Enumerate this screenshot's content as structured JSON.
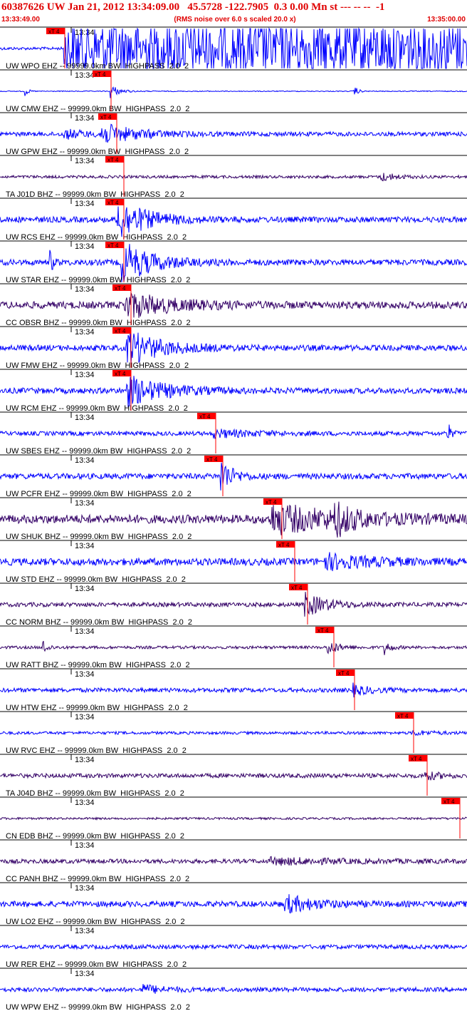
{
  "header": {
    "title": "60387626 UW Jan 21, 2012 13:34:09.00   45.5728 -122.7905  0.3 0.00 Mn st --- -- --  -1",
    "start_time": "13:33:49.00",
    "note": "(RMS noise over 6.0 s scaled 20.0 x)",
    "end_time": "13:35:00.00"
  },
  "traces": [
    {
      "label": "UW WPO EHZ -- 99999.0km BW  HIGHPASS  2.0  2",
      "time": "13:34",
      "pick": "xT 4"
    },
    {
      "label": "UW CMW EHZ -- 99999.0km BW  HIGHPASS  2.0  2",
      "time": "13:34",
      "pick": "xT 4"
    },
    {
      "label": "UW GPW EHZ -- 99999.0km BW  HIGHPASS  2.0  2",
      "time": "13:34",
      "pick": "xT 4"
    },
    {
      "label": "TA J01D BHZ -- 99999.0km BW  HIGHPASS  2.0  2",
      "time": "13:34",
      "pick": "xT 4"
    },
    {
      "label": "UW RCS EHZ -- 99999.0km BW  HIGHPASS  2.0  2",
      "time": "13:34",
      "pick": "xT 4"
    },
    {
      "label": "UW STAR EHZ -- 99999.0km BW  HIGHPASS  2.0  2",
      "time": "13:34",
      "pick": "xT 4"
    },
    {
      "label": "CC OBSR BHZ -- 99999.0km BW  HIGHPASS  2.0  2",
      "time": "13:34",
      "pick": "xT 4"
    },
    {
      "label": "UW FMW EHZ -- 99999.0km BW  HIGHPASS  2.0  2",
      "time": "13:34",
      "pick": "xT 4"
    },
    {
      "label": "UW RCM EHZ -- 99999.0km BW  HIGHPASS  2.0  2",
      "time": "13:34",
      "pick": "xT 4"
    },
    {
      "label": "UW SBES EHZ -- 99999.0km BW  HIGHPASS  2.0  2",
      "time": "13:34",
      "pick": "xT 4"
    },
    {
      "label": "UW PCFR EHZ -- 99999.0km BW  HIGHPASS  2.0  2",
      "time": "13:34",
      "pick": "xT 4"
    },
    {
      "label": "UW SHUK BHZ -- 99999.0km BW  HIGHPASS  2.0  2",
      "time": "13:34",
      "pick": "xT 4"
    },
    {
      "label": "UW STD EHZ -- 99999.0km BW  HIGHPASS  2.0  2",
      "time": "13:34",
      "pick": "xT 4"
    },
    {
      "label": "CC NORM BHZ -- 99999.0km BW  HIGHPASS  2.0  2",
      "time": "13:34",
      "pick": "xT 4"
    },
    {
      "label": "UW RATT BHZ -- 99999.0km BW  HIGHPASS  2.0  2",
      "time": "13:34",
      "pick": "xT 4"
    },
    {
      "label": "UW HTW EHZ -- 99999.0km BW  HIGHPASS  2.0  2",
      "time": "13:34",
      "pick": "xT 4"
    },
    {
      "label": "UW RVC EHZ -- 99999.0km BW  HIGHPASS  2.0  2",
      "time": "13:34",
      "pick": "xT 4"
    },
    {
      "label": "TA J04D BHZ -- 99999.0km BW  HIGHPASS  2.0  2",
      "time": "13:34",
      "pick": "xT 4"
    },
    {
      "label": "CN EDB BHZ -- 99999.0km BW  HIGHPASS  2.0  2",
      "time": "13:34",
      "pick": "xT 4"
    },
    {
      "label": "CC PANH BHZ -- 99999.0km BW  HIGHPASS  2.0  2",
      "time": "13:34"
    },
    {
      "label": "UW LO2 EHZ -- 99999.0km BW  HIGHPASS  2.0  2",
      "time": "13:34"
    },
    {
      "label": "UW RER EHZ -- 99999.0km BW  HIGHPASS  2.0  2",
      "time": "13:34"
    },
    {
      "label": "UW WPW EHZ -- 99999.0km BW  HIGHPASS  2.0  2",
      "time": "13:34"
    }
  ]
}
